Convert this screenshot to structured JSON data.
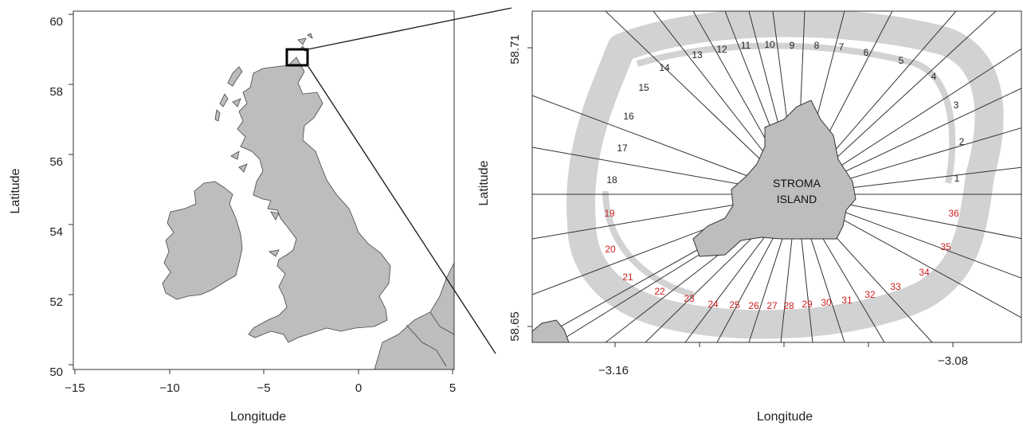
{
  "colors": {
    "land": "#bdbdbd",
    "track": "#d2d2d2",
    "sector_black": "#222222",
    "sector_red": "#cc1f1f"
  },
  "left_map": {
    "xlabel": "Longitude",
    "ylabel": "Latitude",
    "xticks": [
      "−15",
      "−10",
      "−5",
      "0",
      "5"
    ],
    "yticks": [
      "50",
      "52",
      "54",
      "56",
      "58",
      "60"
    ]
  },
  "right_map": {
    "xlabel": "Longitude",
    "ylabel": "Latitude",
    "xticks": [
      "−3.16",
      "−3.08"
    ],
    "yticks": [
      "58.71",
      "58.65"
    ],
    "island_label_line1": "STROMA",
    "island_label_line2": "ISLAND",
    "sectors_black": [
      "1",
      "2",
      "3",
      "4",
      "5",
      "6",
      "7",
      "8",
      "9",
      "10",
      "11",
      "12",
      "13",
      "14",
      "15",
      "16",
      "17",
      "18"
    ],
    "sectors_red": [
      "19",
      "20",
      "21",
      "22",
      "23",
      "24",
      "25",
      "26",
      "27",
      "28",
      "29",
      "30",
      "31",
      "32",
      "33",
      "34",
      "35",
      "36"
    ]
  }
}
